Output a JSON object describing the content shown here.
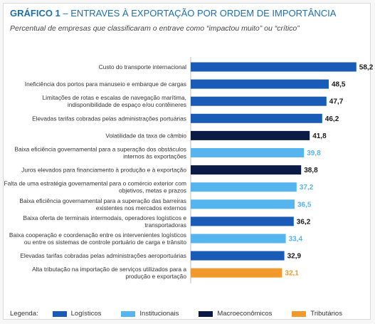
{
  "header": {
    "title_prefix": "GRÁFICO 1",
    "title_rest": " – ENTRAVES À EXPORTAÇÃO POR ORDEM DE IMPORTÂNCIA",
    "subtitle": "Percentual de empresas que classificaram o entrave como “impactou muito” ou “crítico”"
  },
  "legend": {
    "label": "Legenda:",
    "items": [
      {
        "key": "log",
        "name": "Logísticos",
        "color": "#1a5bb8"
      },
      {
        "key": "inst",
        "name": "Institucionais",
        "color": "#56b4ee"
      },
      {
        "key": "macro",
        "name": "Macroeconômicos",
        "color": "#0c1b45"
      },
      {
        "key": "trib",
        "name": "Tributários",
        "color": "#f2992c"
      }
    ]
  },
  "chart_data": {
    "type": "bar",
    "orientation": "horizontal",
    "title": "ENTRAVES À EXPORTAÇÃO POR ORDEM DE IMPORTÂNCIA",
    "xlim": [
      0,
      60
    ],
    "grid": false,
    "legend_position": "bottom",
    "categories": [
      [
        "Custo do transporte internacional"
      ],
      [
        "Ineficiência dos portos para manuseio e embarque de cargas"
      ],
      [
        "Limitações de rotas e escalas de navegação marítima,",
        "indisponibilidade de espaço e/ou contêineres"
      ],
      [
        "Elevadas tarifas cobradas pelas administrações portuárias"
      ],
      [
        "Volatilidade da taxa de câmbio"
      ],
      [
        "Baixa eficiência governamental para a superação dos obstáculos",
        "internos às exportações"
      ],
      [
        "Juros elevados para financiamento à produção e à exportação"
      ],
      [
        "Falta de uma estratégia governamental para o comércio exterior com",
        "objetivos, metas e prazos"
      ],
      [
        "Baixa eficiência governamental para a superação das barreiras",
        "existentes nos mercados externos"
      ],
      [
        "Baixa oferta de terminais intermodais, operadores logísticos e",
        "transportadoras"
      ],
      [
        "Baixa cooperação e coordenação entre os intervenientes logísticos",
        "ou entre os sistemas de controle portuário de carga e trânsito"
      ],
      [
        "Elevadas tarifas cobradas pelas administrações aeroportuárias"
      ],
      [
        "Alta tributação na importação de serviços utilizados para a",
        "produção e exportação"
      ]
    ],
    "values": [
      58.2,
      48.5,
      47.7,
      46.2,
      41.8,
      39.8,
      38.8,
      37.2,
      36.5,
      36.2,
      33.4,
      32.9,
      32.1
    ],
    "value_labels": [
      "58,2",
      "48,5",
      "47,7",
      "46,2",
      "41,8",
      "39,8",
      "38,8",
      "37,2",
      "36,5",
      "36,2",
      "33,4",
      "32,9",
      "32,1"
    ],
    "groups": [
      "log",
      "log",
      "log",
      "log",
      "macro",
      "inst",
      "macro",
      "inst",
      "inst",
      "log",
      "inst",
      "log",
      "trib"
    ]
  }
}
